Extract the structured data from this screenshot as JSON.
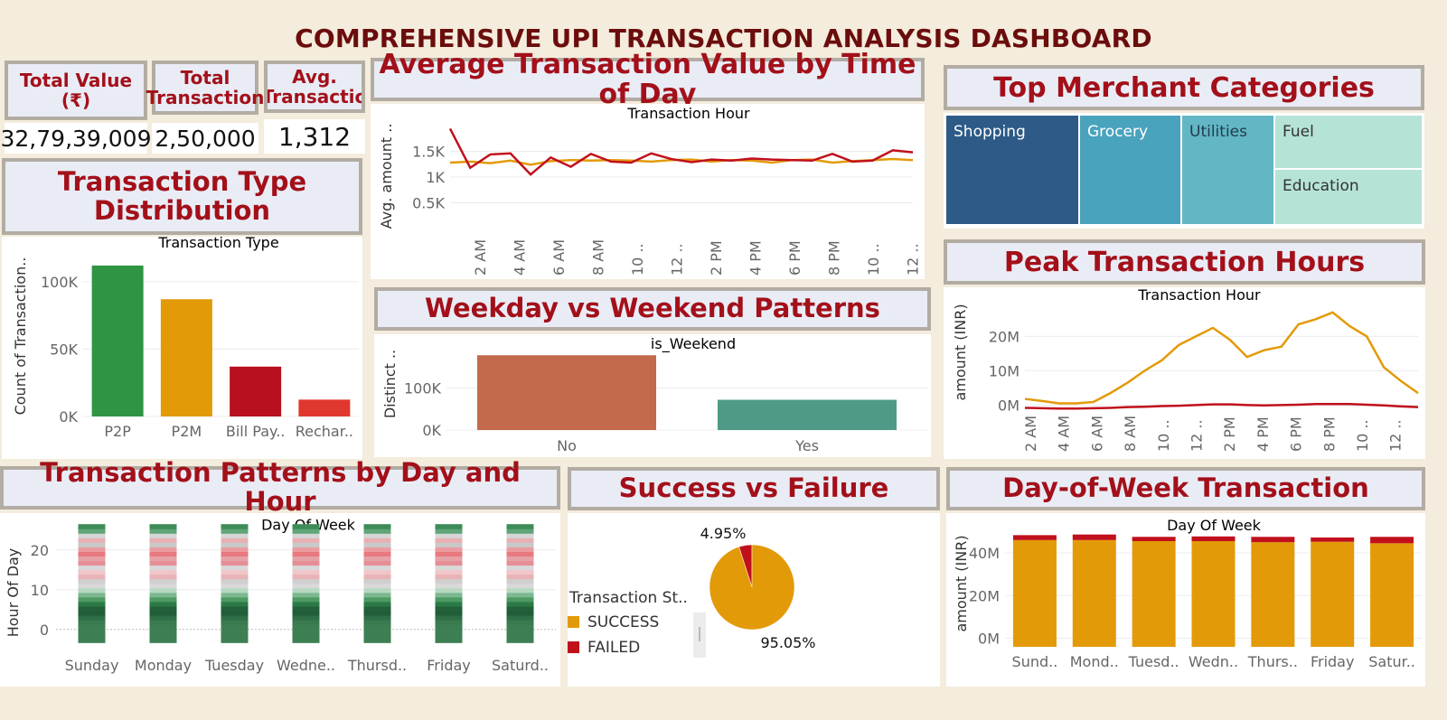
{
  "title": "COMPREHENSIVE UPI TRANSACTION ANALYSIS DASHBOARD",
  "kpis": [
    {
      "label": "Total Value (₹)",
      "value": "32,79,39,009"
    },
    {
      "label": "Total Transaction",
      "value": "2,50,000"
    },
    {
      "label": "Avg. Transactio",
      "value": "1,312"
    }
  ],
  "colors": {
    "header_text": "#a3101a",
    "title": "#6b0d0d",
    "orange": "#e39a08",
    "red": "#c0101c",
    "green": "#2f9443",
    "bg": "#f4ecdc"
  },
  "chart_data": [
    {
      "id": "transaction_type",
      "type": "bar",
      "panel_title": "Transaction Type Distribution",
      "title": "Transaction Type",
      "ylabel": "Count of Transaction..",
      "categories": [
        "P2P",
        "P2M",
        "Bill Pay..",
        "Rechar.."
      ],
      "values": [
        112000,
        87000,
        37000,
        12500
      ],
      "colors": [
        "#2f9443",
        "#e39a08",
        "#b8101e",
        "#e0382f"
      ],
      "ylim": [
        0,
        120000
      ],
      "yticks": [
        {
          "v": 0,
          "label": "0K"
        },
        {
          "v": 50000,
          "label": "50K"
        },
        {
          "v": 100000,
          "label": "100K"
        }
      ]
    },
    {
      "id": "avg_value_by_hour",
      "type": "line",
      "panel_title": "Average Transaction Value by Time of Day",
      "title": "Transaction Hour",
      "ylabel": "Avg. amount ..",
      "x": [
        0,
        1,
        2,
        3,
        4,
        5,
        6,
        7,
        8,
        9,
        10,
        11,
        12,
        13,
        14,
        15,
        16,
        17,
        18,
        19,
        20,
        21,
        22,
        23
      ],
      "xtick_labels": [
        "2 AM",
        "4 AM",
        "6 AM",
        "8 AM",
        "10 ..",
        "12 ..",
        "2 PM",
        "4 PM",
        "6 PM",
        "8 PM",
        "10 ..",
        "12 .."
      ],
      "ylim": [
        0,
        2000
      ],
      "yticks": [
        {
          "v": 500,
          "label": "0.5K"
        },
        {
          "v": 1000,
          "label": "1K"
        },
        {
          "v": 1500,
          "label": "1.5K"
        }
      ],
      "series": [
        {
          "color": "#c0101c",
          "values": [
            1940,
            1180,
            1440,
            1460,
            1050,
            1380,
            1200,
            1450,
            1300,
            1280,
            1460,
            1350,
            1290,
            1340,
            1320,
            1360,
            1340,
            1330,
            1320,
            1450,
            1300,
            1320,
            1520,
            1480
          ]
        },
        {
          "color": "#e39a08",
          "values": [
            1280,
            1300,
            1270,
            1320,
            1240,
            1310,
            1330,
            1320,
            1330,
            1320,
            1300,
            1330,
            1340,
            1300,
            1330,
            1320,
            1280,
            1330,
            1340,
            1280,
            1310,
            1330,
            1350,
            1330
          ]
        }
      ]
    },
    {
      "id": "merchant_categories",
      "type": "treemap",
      "panel_title": "Top Merchant Categories",
      "items": [
        {
          "label": "Shopping",
          "color": "#2d5a87"
        },
        {
          "label": "Grocery",
          "color": "#4aa3bd"
        },
        {
          "label": "Utilities",
          "color": "#63b6c4"
        },
        {
          "label": "Fuel",
          "color": "#b6e3d8"
        },
        {
          "label": "Education",
          "color": "#b6e3d8"
        }
      ]
    },
    {
      "id": "weekday_weekend",
      "type": "bar",
      "panel_title": "Weekday vs Weekend Patterns",
      "title": "is_Weekend",
      "ylabel": "Distinct ..",
      "categories": [
        "No",
        "Yes"
      ],
      "values": [
        178000,
        72000
      ],
      "colors": [
        "#c3694c",
        "#4e9a86"
      ],
      "ylim": [
        0,
        185000
      ],
      "yticks": [
        {
          "v": 0,
          "label": "0K"
        },
        {
          "v": 100000,
          "label": "100K"
        }
      ]
    },
    {
      "id": "peak_hours",
      "type": "line",
      "panel_title": "Peak Transaction Hours",
      "title": "Transaction Hour",
      "ylabel": "amount (INR)",
      "x": [
        0,
        1,
        2,
        3,
        4,
        5,
        6,
        7,
        8,
        9,
        10,
        11,
        12,
        13,
        14,
        15,
        16,
        17,
        18,
        19,
        20,
        21,
        22,
        23
      ],
      "xtick_labels": [
        "2 AM",
        "4 AM",
        "6 AM",
        "8 AM",
        "10 ..",
        "12 ..",
        "2 PM",
        "4 PM",
        "6 PM",
        "8 PM",
        "10 ..",
        "12 .."
      ],
      "ylim": [
        -2000000,
        28000000
      ],
      "yticks": [
        {
          "v": 0,
          "label": "0M"
        },
        {
          "v": 10000000,
          "label": "10M"
        },
        {
          "v": 20000000,
          "label": "20M"
        }
      ],
      "series": [
        {
          "color": "#e39a08",
          "values": [
            1800000,
            1200000,
            500000,
            500000,
            900000,
            3500000,
            6500000,
            10000000,
            13000000,
            17500000,
            20000000,
            22500000,
            19000000,
            14000000,
            16000000,
            17000000,
            23500000,
            25000000,
            27000000,
            23000000,
            20000000,
            11000000,
            7000000,
            3500000
          ]
        },
        {
          "color": "#c0101c",
          "values": [
            -800000,
            -900000,
            -1000000,
            -1000000,
            -900000,
            -800000,
            -600000,
            -500000,
            -300000,
            -200000,
            0,
            200000,
            200000,
            0,
            -100000,
            0,
            100000,
            300000,
            300000,
            300000,
            100000,
            -100000,
            -400000,
            -600000
          ]
        }
      ]
    },
    {
      "id": "day_hour_patterns",
      "type": "heatmap",
      "panel_title": "Transaction Patterns by Day and Hour",
      "title": "Day Of Week",
      "ylabel": "Hour Of Day",
      "categories": [
        "Sunday",
        "Monday",
        "Tuesday",
        "Wedne..",
        "Thursd..",
        "Friday",
        "Saturd.."
      ],
      "ylim": [
        -3,
        27
      ],
      "yticks": [
        {
          "v": 0,
          "label": "0"
        },
        {
          "v": 10,
          "label": "10"
        },
        {
          "v": 20,
          "label": "20"
        }
      ]
    },
    {
      "id": "success_failure",
      "type": "pie",
      "panel_title": "Success vs Failure",
      "legend_title": "Transaction St..",
      "slices": [
        {
          "label": "SUCCESS",
          "value": 95.05,
          "text": "95.05%",
          "color": "#e39a08"
        },
        {
          "label": "FAILED",
          "value": 4.95,
          "text": "4.95%",
          "color": "#c0101c"
        }
      ]
    },
    {
      "id": "day_of_week",
      "type": "bar",
      "panel_title": "Day-of-Week Transaction",
      "title": "Day Of Week",
      "ylabel": "amount (INR)",
      "categories": [
        "Sund..",
        "Mond..",
        "Tuesd..",
        "Wedn..",
        "Thurs..",
        "Friday",
        "Satur.."
      ],
      "series": [
        {
          "name": "SUCCESS",
          "color": "#e39a08",
          "values": [
            46000000,
            46000000,
            45500000,
            45500000,
            45000000,
            45200000,
            44500000
          ]
        },
        {
          "name": "FAILED",
          "color": "#c0101c",
          "values": [
            2300000,
            2600000,
            2000000,
            2200000,
            2500000,
            2000000,
            3000000
          ]
        }
      ],
      "ylim": [
        -4000000,
        51000000
      ],
      "yticks": [
        {
          "v": 0,
          "label": "0M"
        },
        {
          "v": 20000000,
          "label": "20M"
        },
        {
          "v": 40000000,
          "label": "40M"
        }
      ]
    }
  ]
}
